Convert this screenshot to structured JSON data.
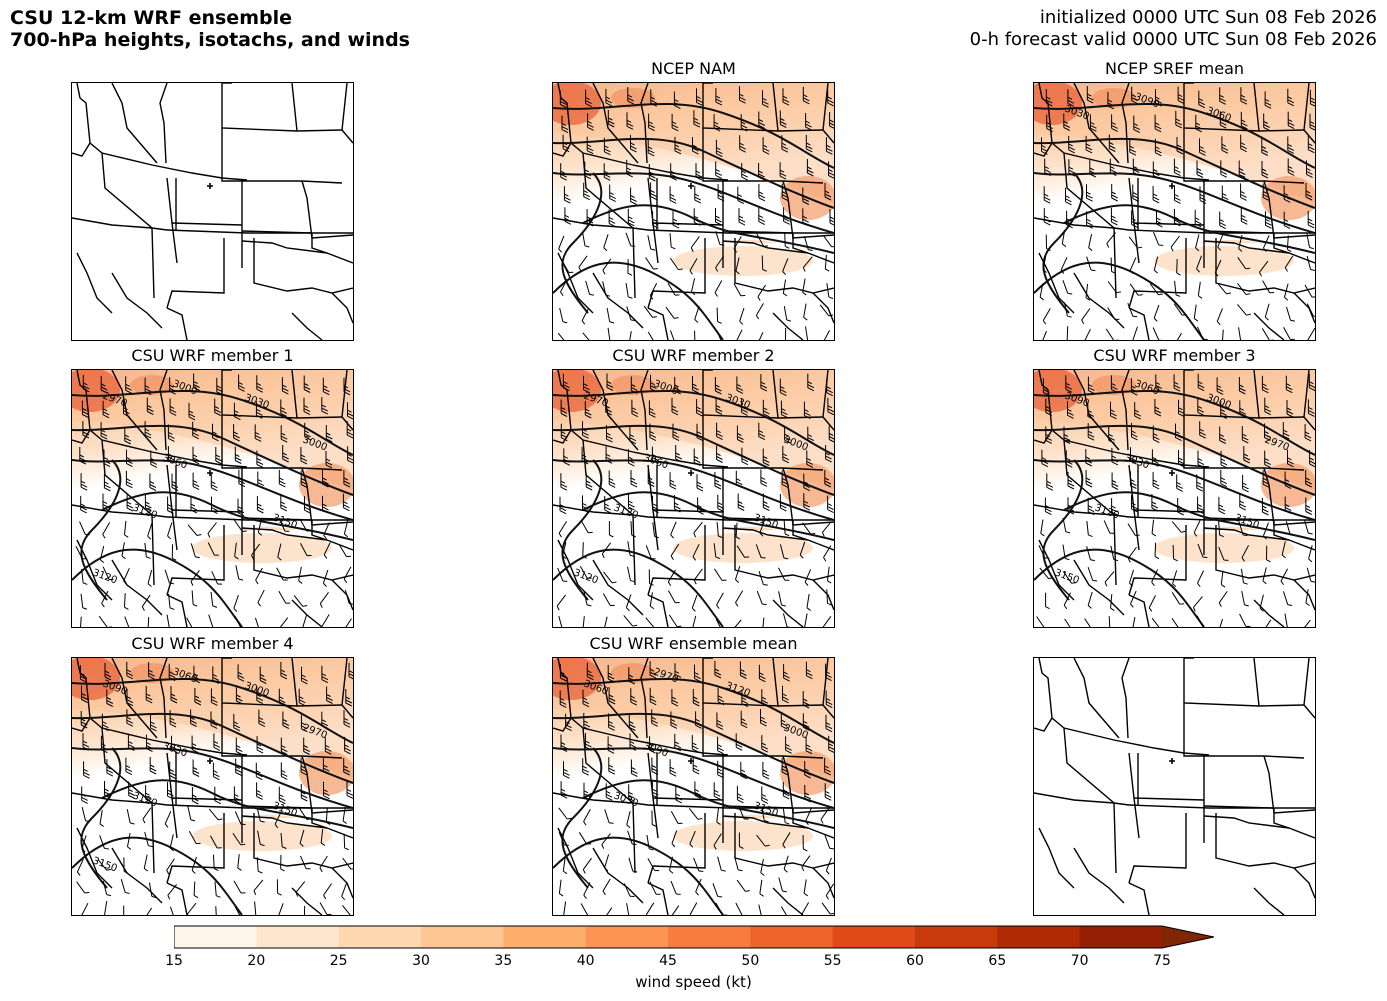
{
  "header": {
    "title_line1": "CSU 12-km WRF ensemble",
    "title_line2": "700-hPa heights, isotachs, and winds",
    "init_line": "initialized 0000 UTC Sun 08 Feb 2026",
    "valid_line": "0-h forecast valid 0000 UTC Sun 08 Feb 2026"
  },
  "panels": [
    {
      "title": "",
      "filled": false,
      "labels": []
    },
    {
      "title": "NCEP NAM",
      "filled": true,
      "labels": []
    },
    {
      "title": "NCEP SREF mean",
      "filled": true,
      "labels": [
        "3030",
        "3090",
        "3060"
      ]
    },
    {
      "title": "CSU WRF member 1",
      "filled": true,
      "labels": [
        "2970",
        "3000",
        "3030",
        "3000",
        "3060",
        "3120",
        "3150",
        "3120"
      ]
    },
    {
      "title": "CSU WRF member 2",
      "filled": true,
      "labels": [
        "2970",
        "3000",
        "3030",
        "3000",
        "3060",
        "3120",
        "3150",
        "3120"
      ]
    },
    {
      "title": "CSU WRF member 3",
      "filled": true,
      "labels": [
        "3090",
        "3060",
        "3000",
        "2970",
        "3030",
        "3120",
        "3150",
        "3150"
      ]
    },
    {
      "title": "CSU WRF member 4",
      "filled": true,
      "labels": [
        "3090",
        "3060",
        "3000",
        "2970",
        "3030",
        "3120",
        "3150",
        "3150"
      ]
    },
    {
      "title": "CSU WRF ensemble mean",
      "filled": true,
      "labels": [
        "3060",
        "2970",
        "3120",
        "3000",
        "3090",
        "3030",
        "3150"
      ]
    },
    {
      "title": "",
      "filled": false,
      "labels": []
    }
  ],
  "colorbar": {
    "label": "wind speed (kt)",
    "ticks": [
      "15",
      "20",
      "25",
      "30",
      "35",
      "40",
      "45",
      "50",
      "55",
      "60",
      "65",
      "70",
      "75"
    ],
    "colors": [
      "#fff5eb",
      "#fee6ce",
      "#fdd8b0",
      "#fdc692",
      "#fdae6b",
      "#fd9453",
      "#f87d3c",
      "#ee6327",
      "#de4b17",
      "#c83a0a",
      "#b02a04",
      "#951f03",
      "#7f2704"
    ],
    "extend": "max"
  }
}
